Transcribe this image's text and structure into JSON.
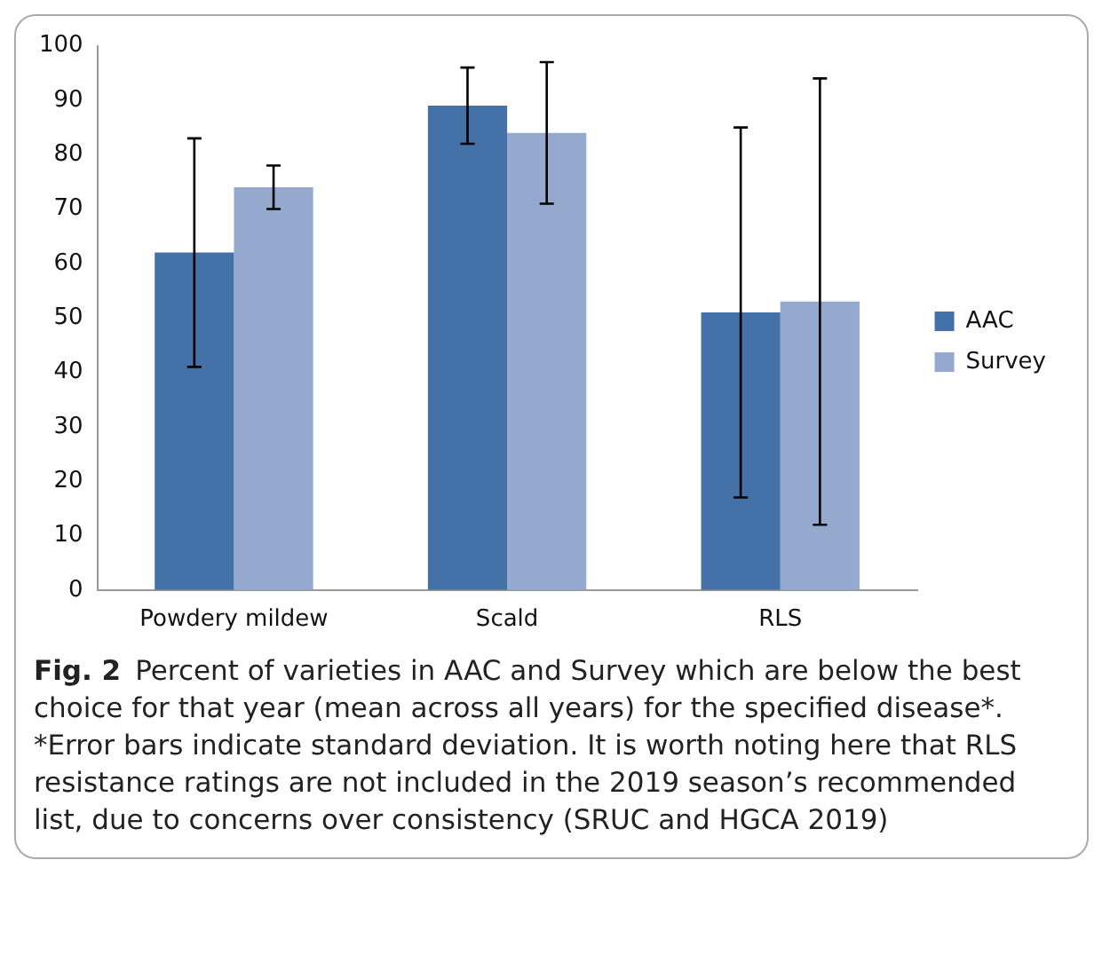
{
  "chart_data": {
    "type": "bar",
    "categories": [
      "Powdery mildew",
      "Scald",
      "RLS"
    ],
    "series": [
      {
        "name": "AAC",
        "color": "#4472a8",
        "values": [
          62,
          89,
          51
        ],
        "errors": [
          21,
          7,
          34
        ]
      },
      {
        "name": "Survey",
        "color": "#95a9cf",
        "values": [
          74,
          84,
          53
        ],
        "errors": [
          4,
          13,
          41
        ]
      }
    ],
    "ylim": [
      0,
      100
    ],
    "yticks": [
      0,
      10,
      20,
      30,
      40,
      50,
      60,
      70,
      80,
      90,
      100
    ],
    "grid": false,
    "legend": "right",
    "annotations": [
      "Fig. 2",
      "Percent of varieties in AAC and Survey which are below the best choice for that year (mean across all years) for the specified disease*. *Error bars indicate standard deviation. It is worth noting here that RLS resistance ratings are not included in the 2019 season’s recommended list, due to concerns over consistency (SRUC and HGCA 2019)"
    ]
  }
}
